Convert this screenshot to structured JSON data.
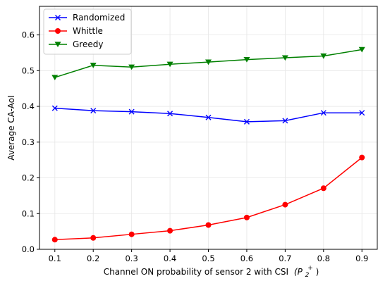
{
  "chart_data": {
    "type": "line",
    "xlabel": "Channel ON probability of sensor 2 with CSI",
    "xlabel_math": "(P",
    "xlabel_sub": "2",
    "xlabel_sup": "+",
    "xlabel_close": ")",
    "ylabel": "Average CA-AoI",
    "x": [
      0.1,
      0.2,
      0.3,
      0.4,
      0.5,
      0.6,
      0.7,
      0.8,
      0.9
    ],
    "xlim": [
      0.06,
      0.94
    ],
    "ylim": [
      0.0,
      0.68
    ],
    "xticks": [
      "0.1",
      "0.2",
      "0.3",
      "0.4",
      "0.5",
      "0.6",
      "0.7",
      "0.8",
      "0.9"
    ],
    "yticks": [
      "0.0",
      "0.1",
      "0.2",
      "0.3",
      "0.4",
      "0.5",
      "0.6"
    ],
    "grid": true,
    "legend_position": "top-left",
    "series": [
      {
        "name": "Randomized",
        "color": "#0000ff",
        "marker": "x",
        "values": [
          0.395,
          0.388,
          0.385,
          0.38,
          0.369,
          0.357,
          0.36,
          0.382,
          0.382
        ]
      },
      {
        "name": "Whittle",
        "color": "#ff0000",
        "marker": "circle",
        "values": [
          0.027,
          0.032,
          0.042,
          0.052,
          0.068,
          0.089,
          0.125,
          0.171,
          0.257
        ]
      },
      {
        "name": "Greedy",
        "color": "#008000",
        "marker": "triangle-down",
        "values": [
          0.481,
          0.515,
          0.51,
          0.518,
          0.524,
          0.531,
          0.536,
          0.541,
          0.559
        ]
      }
    ]
  }
}
